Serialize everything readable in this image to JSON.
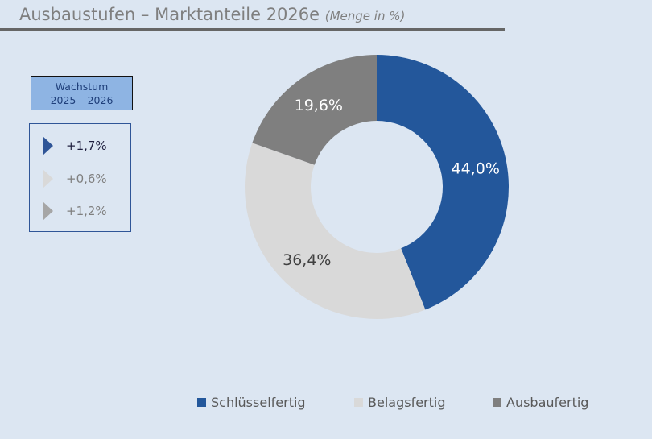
{
  "title": "Ausbaustufen – Marktanteile 2026e",
  "subtitle": "(Menge in %)",
  "growth": {
    "header_line1": "Wachstum",
    "header_line2": "2025 – 2026",
    "items": [
      {
        "value": "+1,7%",
        "color": "#2f5597",
        "text_color": "#1f1f3f"
      },
      {
        "value": "+0,6%",
        "color": "#d9d9d9",
        "text_color": "#7f7f7f"
      },
      {
        "value": "+1,2%",
        "color": "#a6a6a6",
        "text_color": "#7f7f7f"
      }
    ]
  },
  "chart_data": {
    "type": "pie",
    "donut": true,
    "title": "Ausbaustufen – Marktanteile 2026e (Menge in %)",
    "legend_position": "bottom",
    "slices": [
      {
        "name": "Schlüsselfertig",
        "value": 44.0,
        "label": "44,0%",
        "color": "#23579b",
        "label_color": "#ffffff"
      },
      {
        "name": "Belagsfertig",
        "value": 36.4,
        "label": "36,4%",
        "color": "#d9d9d9",
        "label_color": "#404040"
      },
      {
        "name": "Ausbaufertig",
        "value": 19.6,
        "label": "19,6%",
        "color": "#7f7f7f",
        "label_color": "#ffffff"
      }
    ]
  }
}
